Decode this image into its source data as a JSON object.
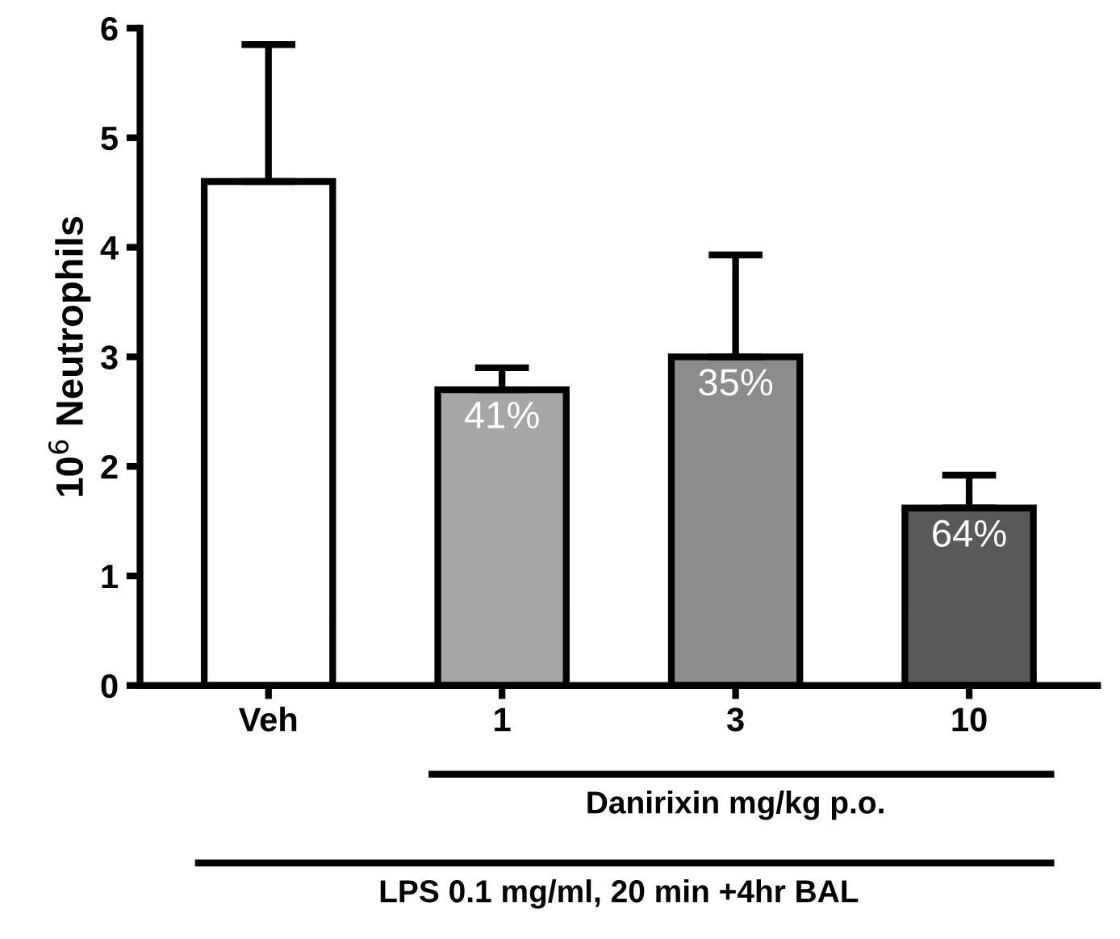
{
  "chart_data": {
    "type": "bar",
    "ylabel": "10$^{6}$ Neutrophils",
    "categories": [
      "Veh",
      "1",
      "3",
      "10"
    ],
    "values": [
      4.6,
      2.7,
      3.0,
      1.62
    ],
    "colors": [
      "#ffffff",
      "#a6a6a6",
      "#8c8c8c",
      "#595959"
    ],
    "errors": [
      [
        4.6,
        5.85
      ],
      [
        2.7,
        2.9
      ],
      [
        3.0,
        3.93
      ],
      [
        1.62,
        1.92
      ]
    ],
    "ylim": [
      0,
      6
    ],
    "yticks": [
      0,
      1,
      2,
      3,
      4,
      5,
      6
    ],
    "grid": false,
    "legend": false,
    "annotations": [
      "41%",
      "35%",
      "64%",
      "Danirixin mg/kg p.o.",
      "LPS 0.1 mg/ml, 20 min +4hr BAL"
    ]
  }
}
